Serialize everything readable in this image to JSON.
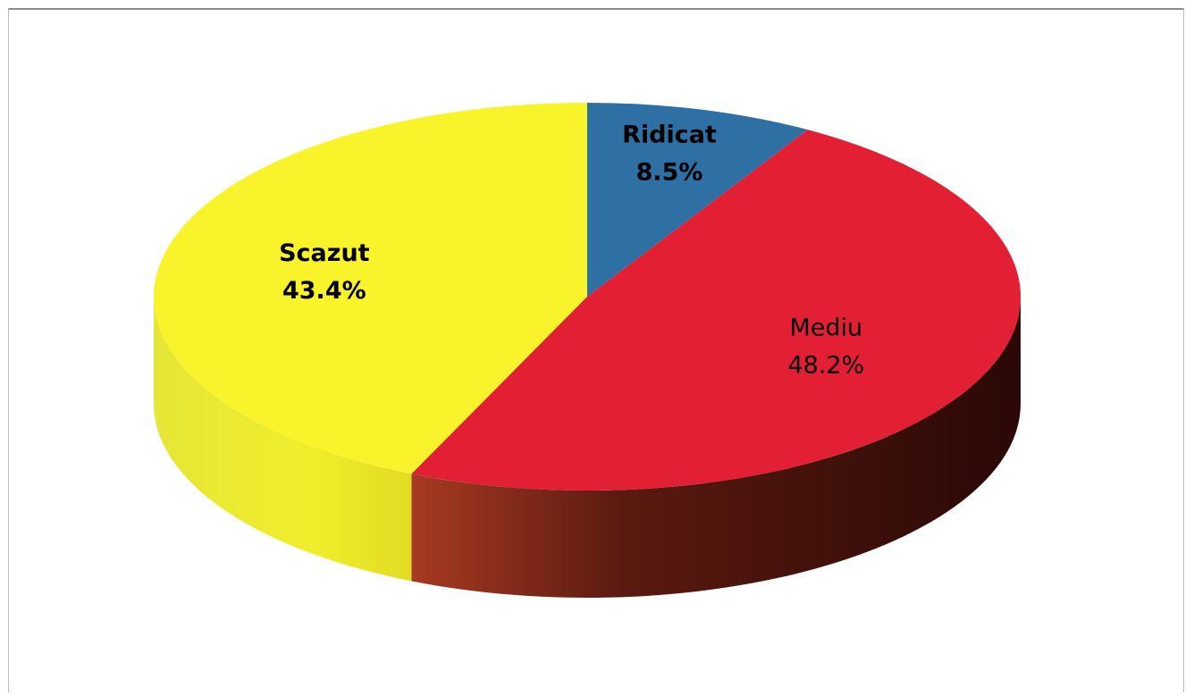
{
  "chart_data": {
    "type": "pie",
    "variant": "3d",
    "title": "",
    "slices": [
      {
        "label": "Ridicat",
        "value": 8.5,
        "value_label": "8.5%",
        "color": "#2e6fa4"
      },
      {
        "label": "Mediu",
        "value": 48.2,
        "value_label": "48.2%",
        "color": "#e31f34"
      },
      {
        "label": "Scazut",
        "value": 43.4,
        "value_label": "43.4%",
        "color": "#f9f32c"
      }
    ],
    "legend": "none",
    "labels": "inside"
  }
}
